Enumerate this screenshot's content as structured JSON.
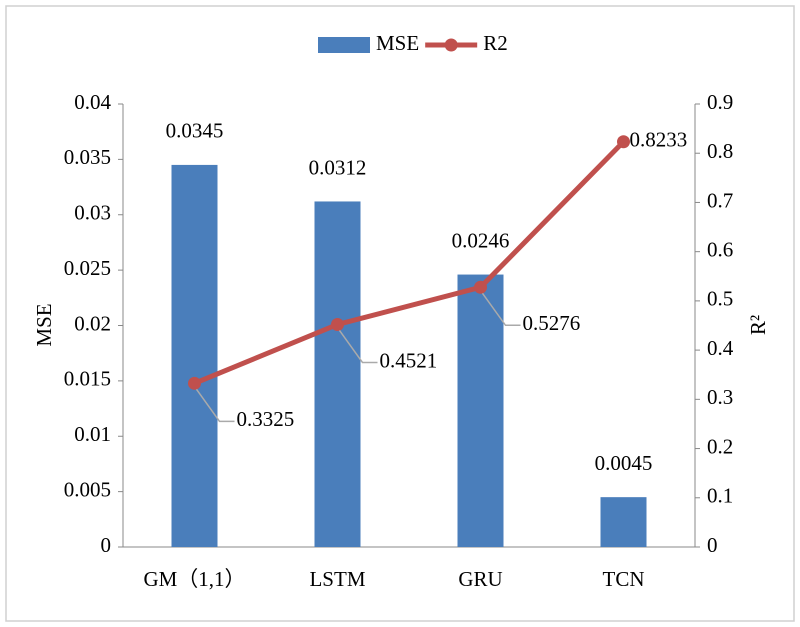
{
  "chart_data": {
    "type": "bar-line",
    "categories": [
      "GM（1,1）",
      "LSTM",
      "GRU",
      "TCN"
    ],
    "series": [
      {
        "name": "MSE",
        "type": "bar",
        "color": "#4a7ebb",
        "values": [
          0.0345,
          0.0312,
          0.0246,
          0.0045
        ]
      },
      {
        "name": "R2",
        "type": "line",
        "axis": "y2",
        "color": "#c0504d",
        "values": [
          0.3325,
          0.4521,
          0.5276,
          0.8233
        ]
      }
    ],
    "ylabel": "MSE",
    "y2label": "R²",
    "ylim": [
      0,
      0.04
    ],
    "yticks": [
      0,
      0.005,
      0.01,
      0.015,
      0.02,
      0.025,
      0.03,
      0.035,
      0.04
    ],
    "y2lim": [
      0,
      0.9
    ],
    "y2ticks": [
      0,
      0.1,
      0.2,
      0.3,
      0.4,
      0.5,
      0.6,
      0.7,
      0.8,
      0.9
    ],
    "legend": "top"
  }
}
